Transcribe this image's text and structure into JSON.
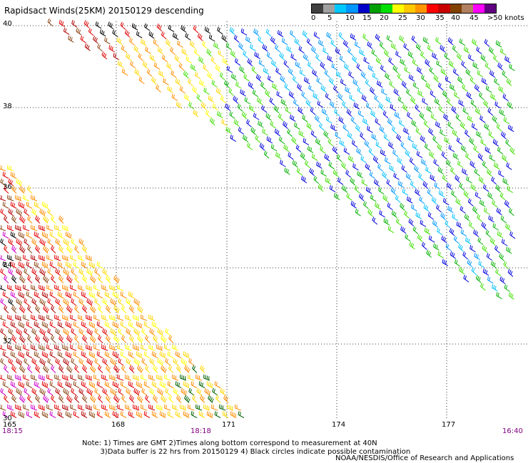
{
  "title": "Rapidsact Winds(25KM) 20150129 descending",
  "colorbar": {
    "labels": [
      "0",
      "5",
      "10",
      "15",
      "20",
      "25",
      "30",
      "35",
      "40",
      "45",
      ">50 knots"
    ],
    "colors": [
      "#404040",
      "#a0a0a0",
      "#00c8ff",
      "#0096ff",
      "#0000c8",
      "#00a000",
      "#00e000",
      "#ffff00",
      "#ffc800",
      "#ff9600",
      "#ff0000",
      "#c80000",
      "#804000",
      "#b08060",
      "#ff00ff",
      "#600080"
    ]
  },
  "lat_labels": [
    "40",
    "38",
    "36",
    "34",
    "32",
    "30"
  ],
  "lon_labels": [
    "165",
    "168",
    "171",
    "174",
    "177"
  ],
  "time_labels": {
    "left": "18:15",
    "mid": "18:18",
    "right": "16:40"
  },
  "notes": {
    "line1": "Note: 1) Times are GMT 2)Times along bottom correspond to measurement at 40N",
    "line2": "3)Data buffer is 22 hrs from 20150129 4) Black circles indicate possible contamination"
  },
  "credit": "NOAA/NESDIS/Office of Research and Applications",
  "wind_colors": {
    "black": "#000000",
    "red": "#e00000",
    "darkred": "#b00000",
    "brown": "#8b4513",
    "orange": "#ff8c00",
    "yellow": "#ffd700",
    "lightyellow": "#ffff00",
    "green": "#00b000",
    "lightgreen": "#40e000",
    "blue": "#0000dd",
    "lightblue": "#0096ff",
    "cyan": "#00c0ff",
    "magenta": "#cc00cc",
    "darkgreen": "#006000"
  }
}
